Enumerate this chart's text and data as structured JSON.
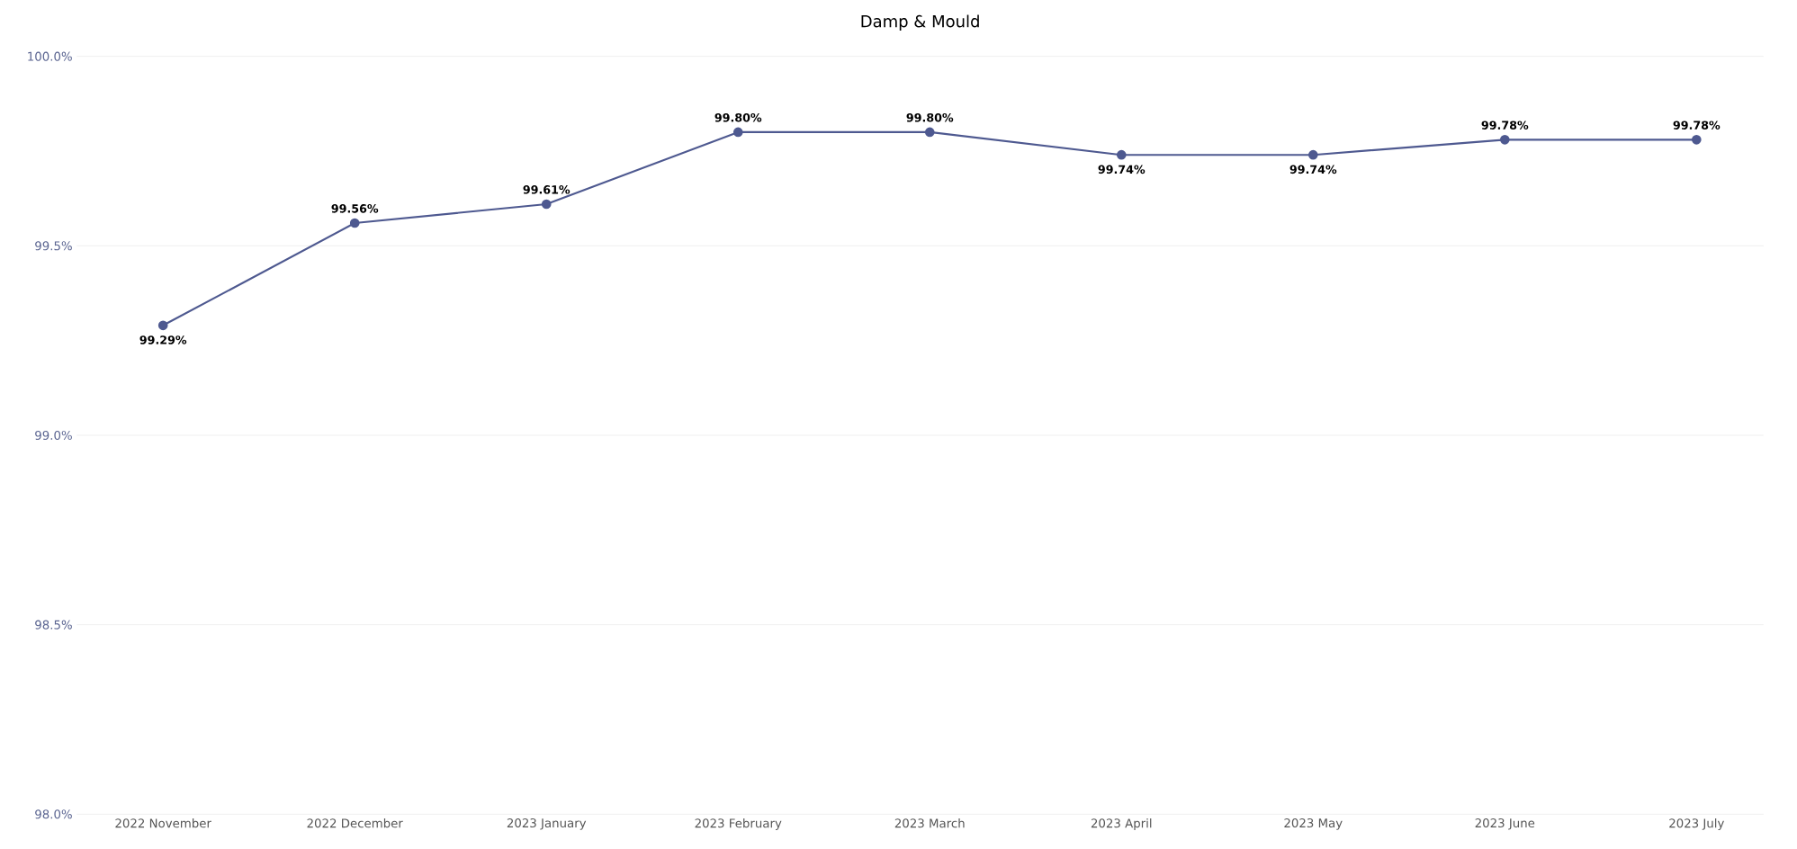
{
  "chart_data": {
    "type": "line",
    "title": "Damp & Mould",
    "categories": [
      "2022 November",
      "2022 December",
      "2023 January",
      "2023 February",
      "2023 March",
      "2023 April",
      "2023 May",
      "2023 June",
      "2023 July"
    ],
    "values": [
      99.29,
      99.56,
      99.61,
      99.8,
      99.8,
      99.74,
      99.74,
      99.78,
      99.78
    ],
    "value_labels": [
      "99.29%",
      "99.56%",
      "99.61%",
      "99.80%",
      "99.80%",
      "99.74%",
      "99.74%",
      "99.78%",
      "99.78%"
    ],
    "color": "#4e5990",
    "ylim": [
      98,
      100
    ],
    "yticks": [
      {
        "value": 98,
        "label": "98.0%"
      },
      {
        "value": 98.5,
        "label": "98.5%"
      },
      {
        "value": 99,
        "label": "99.0%"
      },
      {
        "value": 99.5,
        "label": "99.5%"
      },
      {
        "value": 100,
        "label": "100.0%"
      }
    ],
    "grid": "y",
    "marker": "circle",
    "line_style": "solid"
  }
}
